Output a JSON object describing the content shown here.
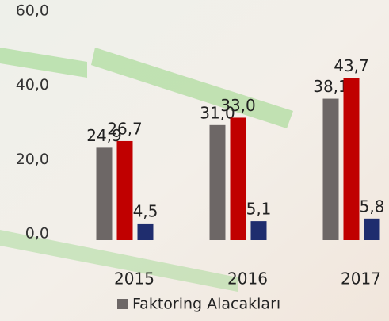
{
  "chart_data": {
    "type": "bar",
    "categories": [
      "2015",
      "2016",
      "2017"
    ],
    "series": [
      {
        "name": "Faktoring Alacakları",
        "color": "#6d6766",
        "values": [
          24.9,
          31.0,
          38.1
        ],
        "value_labels": [
          "24,9",
          "31,0",
          "38,1"
        ]
      },
      {
        "color": "#c00000",
        "values": [
          26.7,
          33.0,
          43.7
        ],
        "value_labels": [
          "26,7",
          "33,0",
          "43,7"
        ]
      },
      {
        "color": "#1f2d6e",
        "values": [
          4.5,
          5.1,
          5.8
        ],
        "value_labels": [
          "4,5",
          "5,1",
          "5,8"
        ]
      }
    ],
    "ylim": [
      0,
      60
    ],
    "yticks": [
      {
        "value": 0,
        "label": "0,0"
      },
      {
        "value": 20,
        "label": "20,0"
      },
      {
        "value": 40,
        "label": "40,0"
      },
      {
        "value": 60,
        "label": "60,0"
      }
    ],
    "grid": false,
    "legend": "bottom"
  }
}
